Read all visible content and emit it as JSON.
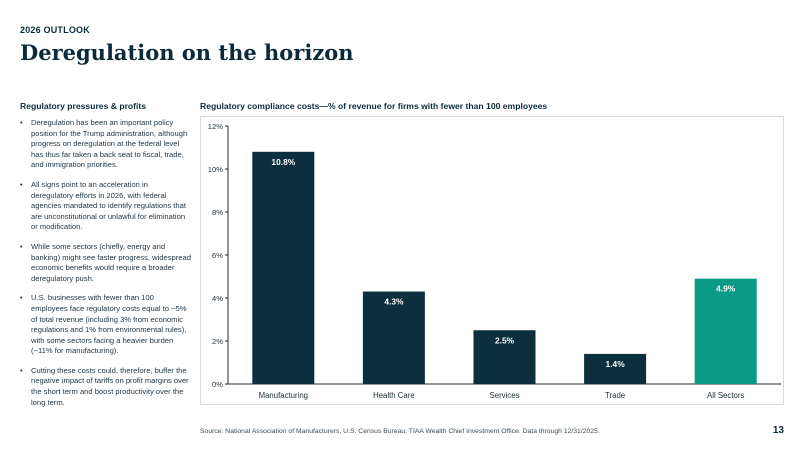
{
  "header": {
    "eyebrow": "2026 OUTLOOK",
    "title": "Deregulation on the horizon"
  },
  "sidebar": {
    "heading": "Regulatory pressures & profits",
    "bullets": [
      "Deregulation has been an important policy position for the Trump administration, although progress on deregulation at the federal level has thus far taken a back seat to fiscal, trade, and immigration priorities.",
      "All signs point to an acceleration in deregulatory efforts in 2026, with federal agencies mandated to identify regulations that are unconstitutional or unlawful for elimination or modification.",
      "While some sectors (chiefly, energy and banking) might see faster progress, widespread economic benefits would require a broader deregulatory push.",
      "U.S. businesses with fewer than 100 employees face regulatory costs equal to ~5% of total revenue (including 3% from economic regulations and 1% from environmental rules), with some sectors facing a heavier burden (~11% for manufacturing).",
      "Cutting these costs could, therefore, buffer the negative impact of tariffs on profit margins over the short term and boost productivity over the long term."
    ]
  },
  "chart_data": {
    "type": "bar",
    "title": "Regulatory compliance costs—% of revenue for firms with fewer than 100 employees",
    "categories": [
      "Manufacturing",
      "Health Care",
      "Services",
      "Trade",
      "All Sectors"
    ],
    "values": [
      10.8,
      4.3,
      2.5,
      1.4,
      4.9
    ],
    "data_labels": [
      "10.8%",
      "4.3%",
      "2.5%",
      "1.4%",
      "4.9%"
    ],
    "ylim": [
      0,
      12
    ],
    "yticks": [
      0,
      2,
      4,
      6,
      8,
      10,
      12
    ],
    "ytick_labels": [
      "0%",
      "2%",
      "4%",
      "6%",
      "8%",
      "10%",
      "12%"
    ],
    "grid": false,
    "colors": {
      "bar": "#0b2f3c",
      "highlight": "#0a9a86",
      "highlight_index": 4,
      "label": "#ffffff",
      "axis": "#1e2d36"
    }
  },
  "footer": {
    "source": "Source: National Association of Manufacturers, U.S. Census Bureau, TIAA Wealth Chief Investment Office. Data through 12/31/2025.",
    "page_number": "13"
  }
}
